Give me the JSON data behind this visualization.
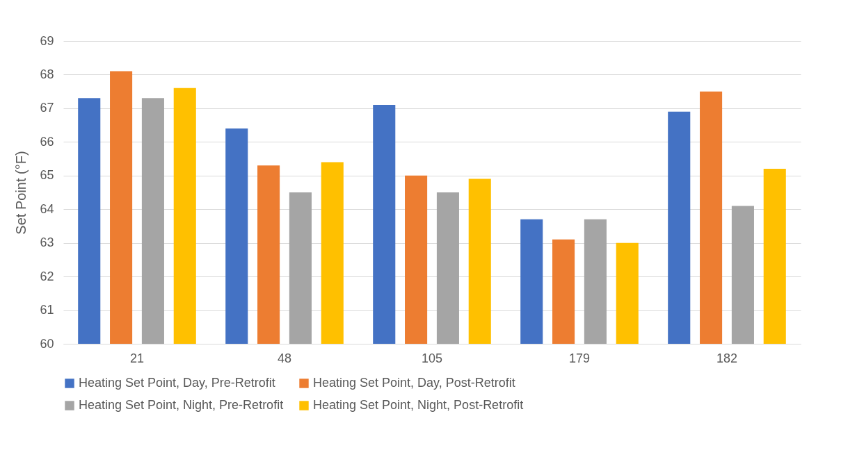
{
  "chart_data": {
    "type": "bar",
    "ylabel": "Set Point (°F)",
    "categories": [
      "21",
      "48",
      "105",
      "179",
      "182"
    ],
    "series": [
      {
        "name": "Heating Set Point, Day, Pre-Retrofit",
        "color": "#4472c4",
        "values": [
          67.3,
          66.4,
          67.1,
          63.7,
          66.9
        ]
      },
      {
        "name": "Heating Set Point, Day, Post-Retrofit",
        "color": "#ed7d31",
        "values": [
          68.1,
          65.3,
          65.0,
          63.1,
          67.5
        ]
      },
      {
        "name": "Heating Set Point, Night, Pre-Retrofit",
        "color": "#a5a5a5",
        "values": [
          67.3,
          64.5,
          64.5,
          63.7,
          64.1
        ]
      },
      {
        "name": "Heating Set Point, Night, Post-Retrofit",
        "color": "#ffc000",
        "values": [
          67.6,
          65.4,
          64.9,
          63.0,
          65.2
        ]
      }
    ],
    "ylim": [
      60,
      69
    ],
    "yticks": [
      60,
      61,
      62,
      63,
      64,
      65,
      66,
      67,
      68,
      69
    ],
    "grid": "y",
    "legend": "bottom"
  }
}
